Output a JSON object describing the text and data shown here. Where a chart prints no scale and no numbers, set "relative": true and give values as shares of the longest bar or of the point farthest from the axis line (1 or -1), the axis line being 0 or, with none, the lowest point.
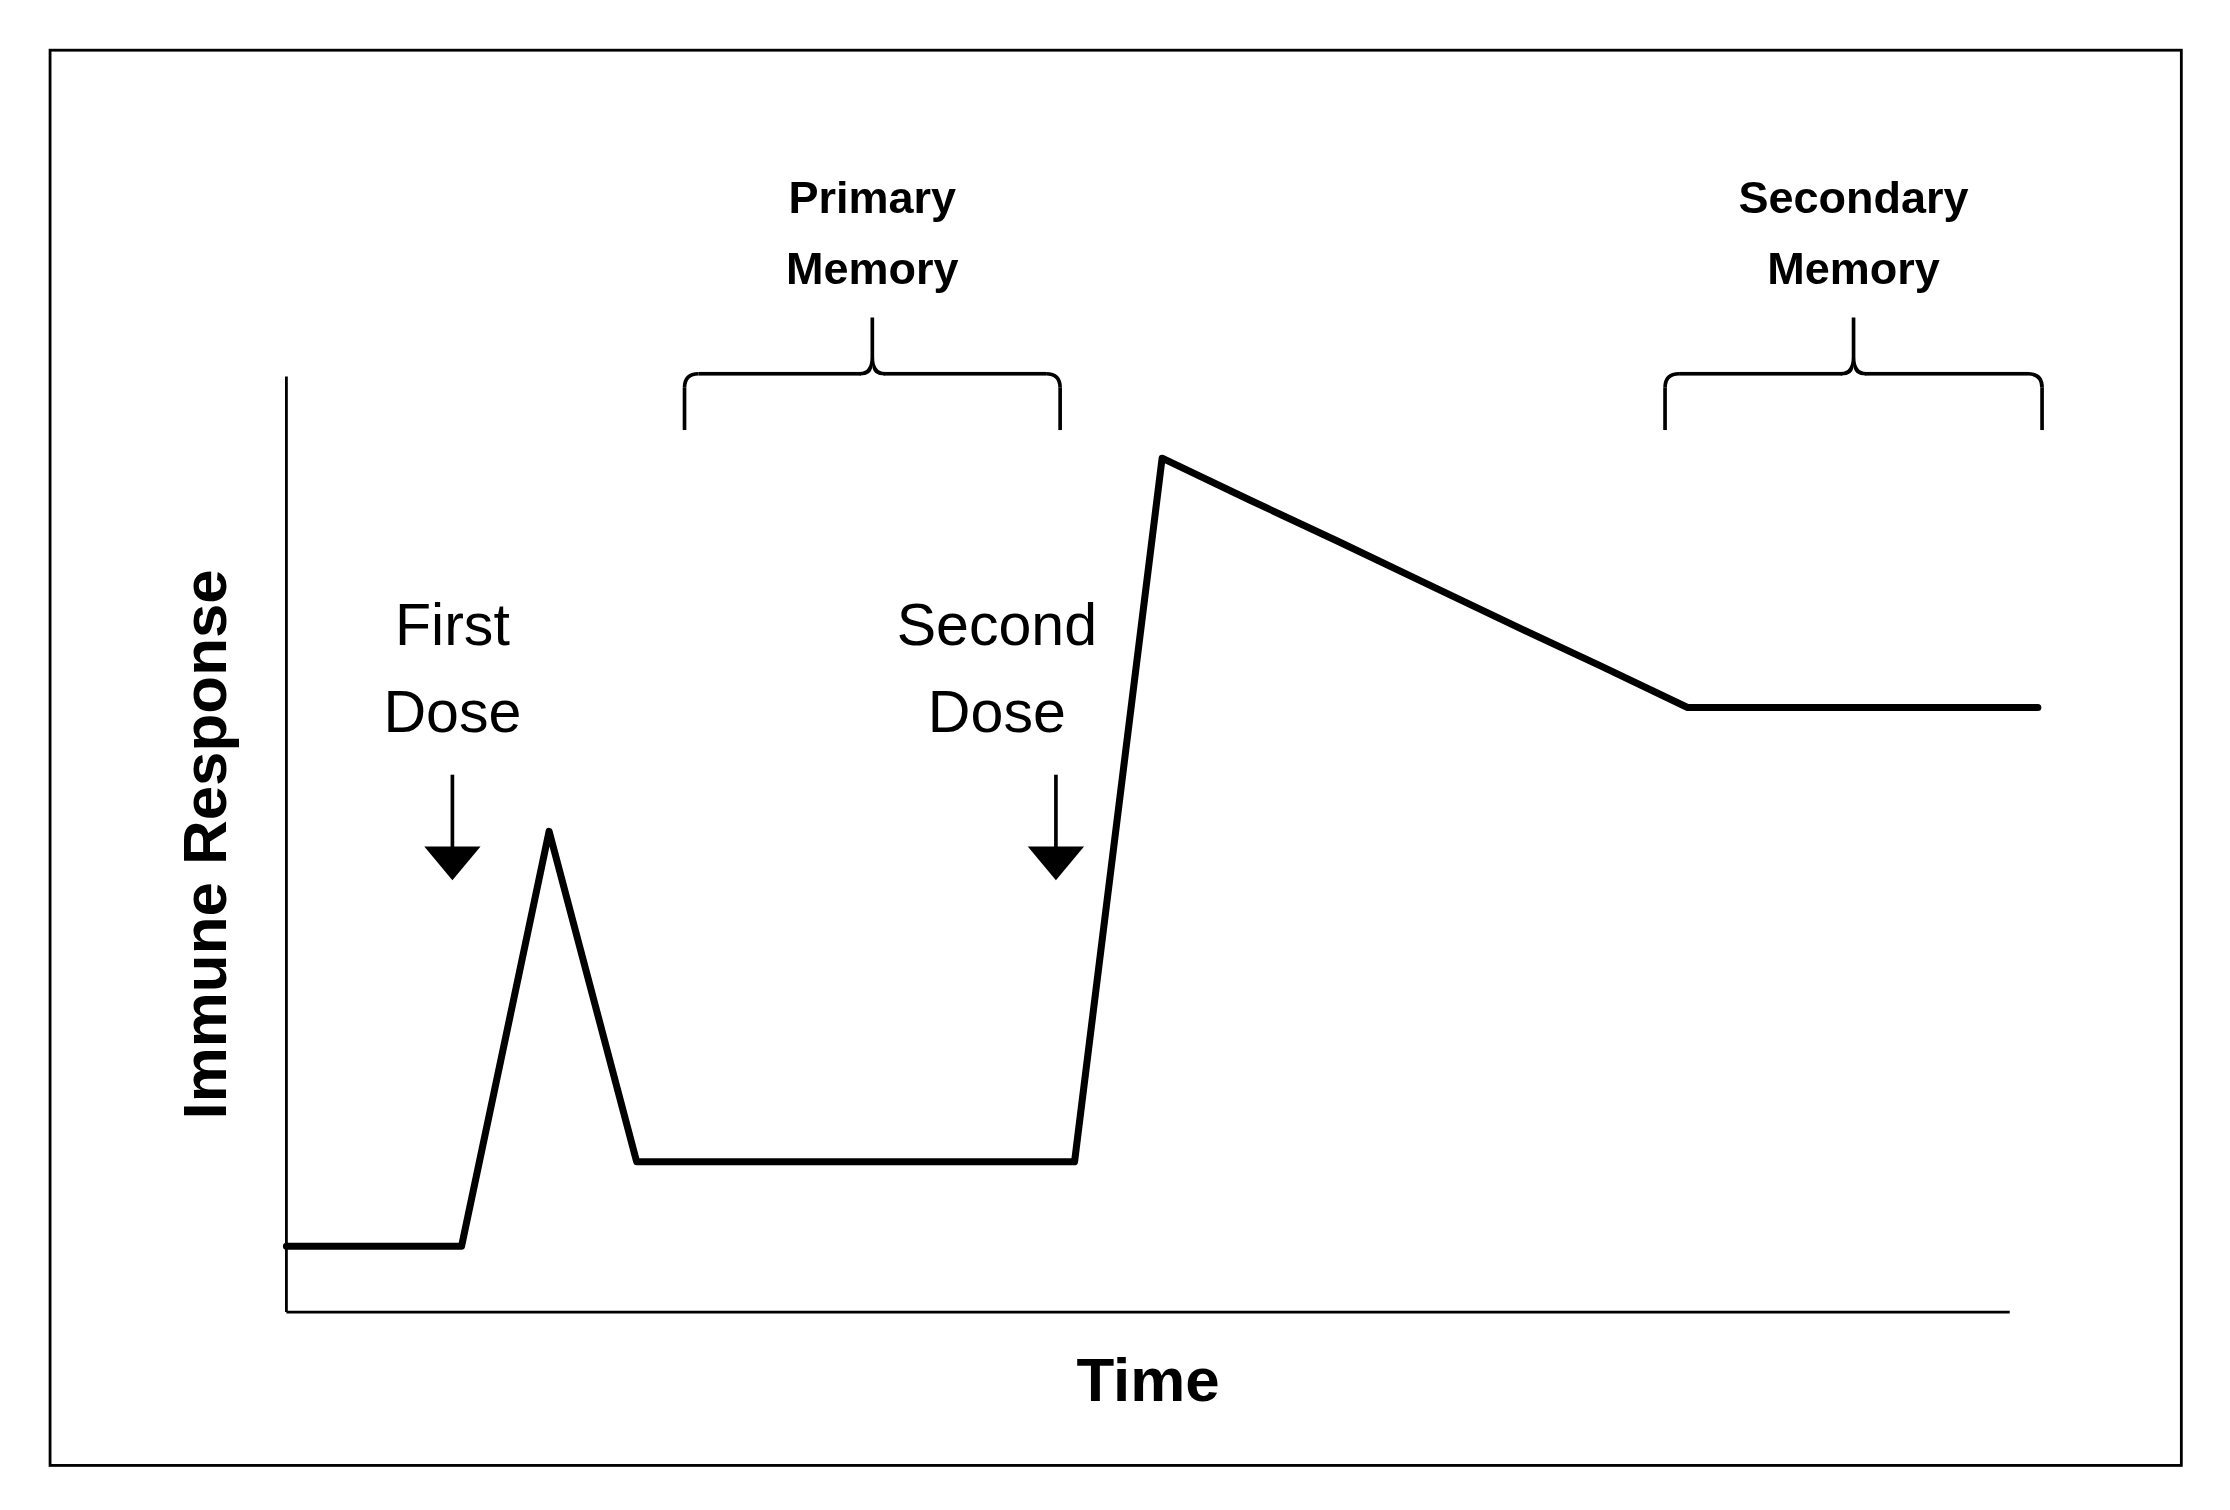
{
  "chart_data": {
    "type": "line",
    "relative": true,
    "xlabel": "Time",
    "ylabel": "Immune Response",
    "categories": [
      null,
      null,
      null,
      null,
      null,
      null,
      null,
      null,
      null,
      null,
      null,
      null,
      null,
      null,
      null,
      null,
      null,
      null,
      null,
      null,
      null
    ],
    "series": [
      {
        "color": "#000000",
        "values": [
          0.077,
          0.077,
          0.077,
          0.563,
          0.176,
          0.176,
          0.176,
          0.176,
          0.176,
          0.176,
          1,
          0.951,
          0.903,
          0.854,
          0.805,
          0.757,
          0.708,
          0.708,
          0.708,
          0.708,
          0.708
        ]
      }
    ],
    "annotations": [
      "First\nDose",
      "Second\nDose",
      "Primary\nMemory",
      "Secondary\nMemory"
    ],
    "marker": "none",
    "line_style": "solid"
  }
}
